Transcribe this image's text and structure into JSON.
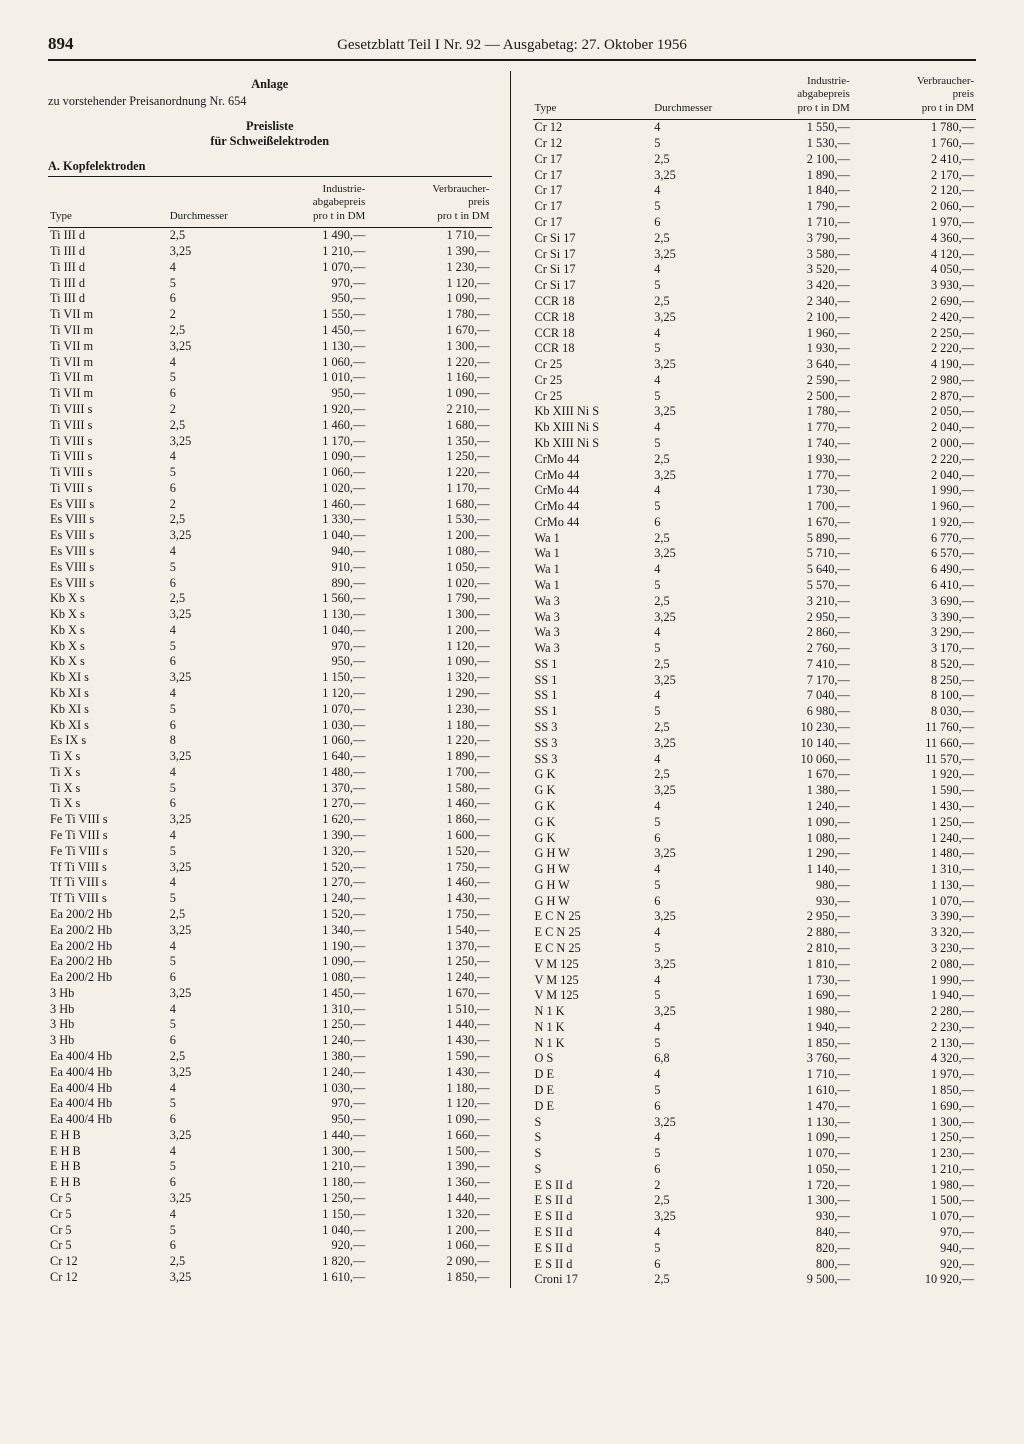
{
  "page_number": "894",
  "header": "Gesetzblatt Teil I Nr. 92 — Ausgabetag: 27. Oktober 1956",
  "anlage_title": "Anlage",
  "anlage_sub": "zu vorstehender Preisanordnung Nr. 654",
  "preisliste_line1": "Preisliste",
  "preisliste_line2": "für Schweißelektroden",
  "section_a": "A. Kopfelektroden",
  "columns": {
    "type": "Type",
    "durchmesser": "Durchmesser",
    "industrie": "Industrie-\nabgabepreis\npro t in DM",
    "verbraucher": "Verbraucher-\npreis\npro t in DM"
  },
  "left_rows": [
    {
      "t": "Ti III d",
      "d": "2,5",
      "i": "1 490,—",
      "v": "1 710,—"
    },
    {
      "t": "Ti III d",
      "d": "3,25",
      "i": "1 210,—",
      "v": "1 390,—"
    },
    {
      "t": "Ti III d",
      "d": "4",
      "i": "1 070,—",
      "v": "1 230,—"
    },
    {
      "t": "Ti III d",
      "d": "5",
      "i": "970,—",
      "v": "1 120,—"
    },
    {
      "t": "Ti III d",
      "d": "6",
      "i": "950,—",
      "v": "1 090,—"
    },
    {
      "t": "Ti VII m",
      "d": "2",
      "i": "1 550,—",
      "v": "1 780,—"
    },
    {
      "t": "Ti VII m",
      "d": "2,5",
      "i": "1 450,—",
      "v": "1 670,—"
    },
    {
      "t": "Ti VII m",
      "d": "3,25",
      "i": "1 130,—",
      "v": "1 300,—"
    },
    {
      "t": "Ti VII m",
      "d": "4",
      "i": "1 060,—",
      "v": "1 220,—"
    },
    {
      "t": "Ti VII m",
      "d": "5",
      "i": "1 010,—",
      "v": "1 160,—"
    },
    {
      "t": "Ti VII m",
      "d": "6",
      "i": "950,—",
      "v": "1 090,—"
    },
    {
      "t": "Ti VIII s",
      "d": "2",
      "i": "1 920,—",
      "v": "2 210,—"
    },
    {
      "t": "Ti VIII s",
      "d": "2,5",
      "i": "1 460,—",
      "v": "1 680,—"
    },
    {
      "t": "Ti VIII s",
      "d": "3,25",
      "i": "1 170,—",
      "v": "1 350,—"
    },
    {
      "t": "Ti VIII s",
      "d": "4",
      "i": "1 090,—",
      "v": "1 250,—"
    },
    {
      "t": "Ti VIII s",
      "d": "5",
      "i": "1 060,—",
      "v": "1 220,—"
    },
    {
      "t": "Ti VIII s",
      "d": "6",
      "i": "1 020,—",
      "v": "1 170,—"
    },
    {
      "t": "Es VIII s",
      "d": "2",
      "i": "1 460,—",
      "v": "1 680,—"
    },
    {
      "t": "Es VIII s",
      "d": "2,5",
      "i": "1 330,—",
      "v": "1 530,—"
    },
    {
      "t": "Es VIII s",
      "d": "3,25",
      "i": "1 040,—",
      "v": "1 200,—"
    },
    {
      "t": "Es VIII s",
      "d": "4",
      "i": "940,—",
      "v": "1 080,—"
    },
    {
      "t": "Es VIII s",
      "d": "5",
      "i": "910,—",
      "v": "1 050,—"
    },
    {
      "t": "Es VIII s",
      "d": "6",
      "i": "890,—",
      "v": "1 020,—"
    },
    {
      "t": "Kb X s",
      "d": "2,5",
      "i": "1 560,—",
      "v": "1 790,—"
    },
    {
      "t": "Kb X s",
      "d": "3,25",
      "i": "1 130,—",
      "v": "1 300,—"
    },
    {
      "t": "Kb X s",
      "d": "4",
      "i": "1 040,—",
      "v": "1 200,—"
    },
    {
      "t": "Kb X s",
      "d": "5",
      "i": "970,—",
      "v": "1 120,—"
    },
    {
      "t": "Kb X s",
      "d": "6",
      "i": "950,—",
      "v": "1 090,—"
    },
    {
      "t": "Kb XI s",
      "d": "3,25",
      "i": "1 150,—",
      "v": "1 320,—"
    },
    {
      "t": "Kb XI s",
      "d": "4",
      "i": "1 120,—",
      "v": "1 290,—"
    },
    {
      "t": "Kb XI s",
      "d": "5",
      "i": "1 070,—",
      "v": "1 230,—"
    },
    {
      "t": "Kb XI s",
      "d": "6",
      "i": "1 030,—",
      "v": "1 180,—"
    },
    {
      "t": "Es IX s",
      "d": "8",
      "i": "1 060,—",
      "v": "1 220,—"
    },
    {
      "t": "Ti X s",
      "d": "3,25",
      "i": "1 640,—",
      "v": "1 890,—"
    },
    {
      "t": "Ti X s",
      "d": "4",
      "i": "1 480,—",
      "v": "1 700,—"
    },
    {
      "t": "Ti X s",
      "d": "5",
      "i": "1 370,—",
      "v": "1 580,—"
    },
    {
      "t": "Ti X s",
      "d": "6",
      "i": "1 270,—",
      "v": "1 460,—"
    },
    {
      "t": "Fe Ti VIII s",
      "d": "3,25",
      "i": "1 620,—",
      "v": "1 860,—"
    },
    {
      "t": "Fe Ti VIII s",
      "d": "4",
      "i": "1 390,—",
      "v": "1 600,—"
    },
    {
      "t": "Fe Ti VIII s",
      "d": "5",
      "i": "1 320,—",
      "v": "1 520,—"
    },
    {
      "t": "Tf Ti VIII s",
      "d": "3,25",
      "i": "1 520,—",
      "v": "1 750,—"
    },
    {
      "t": "Tf Ti VIII s",
      "d": "4",
      "i": "1 270,—",
      "v": "1 460,—"
    },
    {
      "t": "Tf Ti VIII s",
      "d": "5",
      "i": "1 240,—",
      "v": "1 430,—"
    },
    {
      "t": "Ea 200/2 Hb",
      "d": "2,5",
      "i": "1 520,—",
      "v": "1 750,—"
    },
    {
      "t": "Ea 200/2 Hb",
      "d": "3,25",
      "i": "1 340,—",
      "v": "1 540,—"
    },
    {
      "t": "Ea 200/2 Hb",
      "d": "4",
      "i": "1 190,—",
      "v": "1 370,—"
    },
    {
      "t": "Ea 200/2 Hb",
      "d": "5",
      "i": "1 090,—",
      "v": "1 250,—"
    },
    {
      "t": "Ea 200/2 Hb",
      "d": "6",
      "i": "1 080,—",
      "v": "1 240,—"
    },
    {
      "t": "3 Hb",
      "d": "3,25",
      "i": "1 450,—",
      "v": "1 670,—"
    },
    {
      "t": "3 Hb",
      "d": "4",
      "i": "1 310,—",
      "v": "1 510,—"
    },
    {
      "t": "3 Hb",
      "d": "5",
      "i": "1 250,—",
      "v": "1 440,—"
    },
    {
      "t": "3 Hb",
      "d": "6",
      "i": "1 240,—",
      "v": "1 430,—"
    },
    {
      "t": "Ea 400/4 Hb",
      "d": "2,5",
      "i": "1 380,—",
      "v": "1 590,—"
    },
    {
      "t": "Ea 400/4 Hb",
      "d": "3,25",
      "i": "1 240,—",
      "v": "1 430,—"
    },
    {
      "t": "Ea 400/4 Hb",
      "d": "4",
      "i": "1 030,—",
      "v": "1 180,—"
    },
    {
      "t": "Ea 400/4 Hb",
      "d": "5",
      "i": "970,—",
      "v": "1 120,—"
    },
    {
      "t": "Ea 400/4 Hb",
      "d": "6",
      "i": "950,—",
      "v": "1 090,—"
    },
    {
      "t": "E H B",
      "d": "3,25",
      "i": "1 440,—",
      "v": "1 660,—"
    },
    {
      "t": "E H B",
      "d": "4",
      "i": "1 300,—",
      "v": "1 500,—"
    },
    {
      "t": "E H B",
      "d": "5",
      "i": "1 210,—",
      "v": "1 390,—"
    },
    {
      "t": "E H B",
      "d": "6",
      "i": "1 180,—",
      "v": "1 360,—"
    },
    {
      "t": "Cr 5",
      "d": "3,25",
      "i": "1 250,—",
      "v": "1 440,—"
    },
    {
      "t": "Cr 5",
      "d": "4",
      "i": "1 150,—",
      "v": "1 320,—"
    },
    {
      "t": "Cr 5",
      "d": "5",
      "i": "1 040,—",
      "v": "1 200,—"
    },
    {
      "t": "Cr 5",
      "d": "6",
      "i": "920,—",
      "v": "1 060,—"
    },
    {
      "t": "Cr 12",
      "d": "2,5",
      "i": "1 820,—",
      "v": "2 090,—"
    },
    {
      "t": "Cr 12",
      "d": "3,25",
      "i": "1 610,—",
      "v": "1 850,—"
    }
  ],
  "right_rows": [
    {
      "t": "Cr 12",
      "d": "4",
      "i": "1 550,—",
      "v": "1 780,—"
    },
    {
      "t": "Cr 12",
      "d": "5",
      "i": "1 530,—",
      "v": "1 760,—"
    },
    {
      "t": "Cr 17",
      "d": "2,5",
      "i": "2 100,—",
      "v": "2 410,—"
    },
    {
      "t": "Cr 17",
      "d": "3,25",
      "i": "1 890,—",
      "v": "2 170,—"
    },
    {
      "t": "Cr 17",
      "d": "4",
      "i": "1 840,—",
      "v": "2 120,—"
    },
    {
      "t": "Cr 17",
      "d": "5",
      "i": "1 790,—",
      "v": "2 060,—"
    },
    {
      "t": "Cr 17",
      "d": "6",
      "i": "1 710,—",
      "v": "1 970,—"
    },
    {
      "t": "Cr Si 17",
      "d": "2,5",
      "i": "3 790,—",
      "v": "4 360,—"
    },
    {
      "t": "Cr Si 17",
      "d": "3,25",
      "i": "3 580,—",
      "v": "4 120,—"
    },
    {
      "t": "Cr Si 17",
      "d": "4",
      "i": "3 520,—",
      "v": "4 050,—"
    },
    {
      "t": "Cr Si 17",
      "d": "5",
      "i": "3 420,—",
      "v": "3 930,—"
    },
    {
      "t": "CCR 18",
      "d": "2,5",
      "i": "2 340,—",
      "v": "2 690,—"
    },
    {
      "t": "CCR 18",
      "d": "3,25",
      "i": "2 100,—",
      "v": "2 420,—"
    },
    {
      "t": "CCR 18",
      "d": "4",
      "i": "1 960,—",
      "v": "2 250,—"
    },
    {
      "t": "CCR 18",
      "d": "5",
      "i": "1 930,—",
      "v": "2 220,—"
    },
    {
      "t": "Cr 25",
      "d": "3,25",
      "i": "3 640,—",
      "v": "4 190,—"
    },
    {
      "t": "Cr 25",
      "d": "4",
      "i": "2 590,—",
      "v": "2 980,—"
    },
    {
      "t": "Cr 25",
      "d": "5",
      "i": "2 500,—",
      "v": "2 870,—"
    },
    {
      "t": "Kb XIII Ni S",
      "d": "3,25",
      "i": "1 780,—",
      "v": "2 050,—"
    },
    {
      "t": "Kb XIII Ni S",
      "d": "4",
      "i": "1 770,—",
      "v": "2 040,—"
    },
    {
      "t": "Kb XIII Ni S",
      "d": "5",
      "i": "1 740,—",
      "v": "2 000,—"
    },
    {
      "t": "CrMo 44",
      "d": "2,5",
      "i": "1 930,—",
      "v": "2 220,—"
    },
    {
      "t": "CrMo 44",
      "d": "3,25",
      "i": "1 770,—",
      "v": "2 040,—"
    },
    {
      "t": "CrMo 44",
      "d": "4",
      "i": "1 730,—",
      "v": "1 990,—"
    },
    {
      "t": "CrMo 44",
      "d": "5",
      "i": "1 700,—",
      "v": "1 960,—"
    },
    {
      "t": "CrMo 44",
      "d": "6",
      "i": "1 670,—",
      "v": "1 920,—"
    },
    {
      "t": "Wa 1",
      "d": "2,5",
      "i": "5 890,—",
      "v": "6 770,—"
    },
    {
      "t": "Wa 1",
      "d": "3,25",
      "i": "5 710,—",
      "v": "6 570,—"
    },
    {
      "t": "Wa 1",
      "d": "4",
      "i": "5 640,—",
      "v": "6 490,—"
    },
    {
      "t": "Wa 1",
      "d": "5",
      "i": "5 570,—",
      "v": "6 410,—"
    },
    {
      "t": "Wa 3",
      "d": "2,5",
      "i": "3 210,—",
      "v": "3 690,—"
    },
    {
      "t": "Wa 3",
      "d": "3,25",
      "i": "2 950,—",
      "v": "3 390,—"
    },
    {
      "t": "Wa 3",
      "d": "4",
      "i": "2 860,—",
      "v": "3 290,—"
    },
    {
      "t": "Wa 3",
      "d": "5",
      "i": "2 760,—",
      "v": "3 170,—"
    },
    {
      "t": "SS 1",
      "d": "2,5",
      "i": "7 410,—",
      "v": "8 520,—"
    },
    {
      "t": "SS 1",
      "d": "3,25",
      "i": "7 170,—",
      "v": "8 250,—"
    },
    {
      "t": "SS 1",
      "d": "4",
      "i": "7 040,—",
      "v": "8 100,—"
    },
    {
      "t": "SS 1",
      "d": "5",
      "i": "6 980,—",
      "v": "8 030,—"
    },
    {
      "t": "SS 3",
      "d": "2,5",
      "i": "10 230,—",
      "v": "11 760,—"
    },
    {
      "t": "SS 3",
      "d": "3,25",
      "i": "10 140,—",
      "v": "11 660,—"
    },
    {
      "t": "SS 3",
      "d": "4",
      "i": "10 060,—",
      "v": "11 570,—"
    },
    {
      "t": "G K",
      "d": "2,5",
      "i": "1 670,—",
      "v": "1 920,—"
    },
    {
      "t": "G K",
      "d": "3,25",
      "i": "1 380,—",
      "v": "1 590,—"
    },
    {
      "t": "G K",
      "d": "4",
      "i": "1 240,—",
      "v": "1 430,—"
    },
    {
      "t": "G K",
      "d": "5",
      "i": "1 090,—",
      "v": "1 250,—"
    },
    {
      "t": "G K",
      "d": "6",
      "i": "1 080,—",
      "v": "1 240,—"
    },
    {
      "t": "G H W",
      "d": "3,25",
      "i": "1 290,—",
      "v": "1 480,—"
    },
    {
      "t": "G H W",
      "d": "4",
      "i": "1 140,—",
      "v": "1 310,—"
    },
    {
      "t": "G H W",
      "d": "5",
      "i": "980,—",
      "v": "1 130,—"
    },
    {
      "t": "G H W",
      "d": "6",
      "i": "930,—",
      "v": "1 070,—"
    },
    {
      "t": "E C N 25",
      "d": "3,25",
      "i": "2 950,—",
      "v": "3 390,—"
    },
    {
      "t": "E C N 25",
      "d": "4",
      "i": "2 880,—",
      "v": "3 320,—"
    },
    {
      "t": "E C N 25",
      "d": "5",
      "i": "2 810,—",
      "v": "3 230,—"
    },
    {
      "t": "V M 125",
      "d": "3,25",
      "i": "1 810,—",
      "v": "2 080,—"
    },
    {
      "t": "V M 125",
      "d": "4",
      "i": "1 730,—",
      "v": "1 990,—"
    },
    {
      "t": "V M 125",
      "d": "5",
      "i": "1 690,—",
      "v": "1 940,—"
    },
    {
      "t": "N 1 K",
      "d": "3,25",
      "i": "1 980,—",
      "v": "2 280,—"
    },
    {
      "t": "N 1 K",
      "d": "4",
      "i": "1 940,—",
      "v": "2 230,—"
    },
    {
      "t": "N 1 K",
      "d": "5",
      "i": "1 850,—",
      "v": "2 130,—"
    },
    {
      "t": "O S",
      "d": "6,8",
      "i": "3 760,—",
      "v": "4 320,—"
    },
    {
      "t": "D E",
      "d": "4",
      "i": "1 710,—",
      "v": "1 970,—"
    },
    {
      "t": "D E",
      "d": "5",
      "i": "1 610,—",
      "v": "1 850,—"
    },
    {
      "t": "D E",
      "d": "6",
      "i": "1 470,—",
      "v": "1 690,—"
    },
    {
      "t": "S",
      "d": "3,25",
      "i": "1 130,—",
      "v": "1 300,—"
    },
    {
      "t": "S",
      "d": "4",
      "i": "1 090,—",
      "v": "1 250,—"
    },
    {
      "t": "S",
      "d": "5",
      "i": "1 070,—",
      "v": "1 230,—"
    },
    {
      "t": "S",
      "d": "6",
      "i": "1 050,—",
      "v": "1 210,—"
    },
    {
      "t": "E S II d",
      "d": "2",
      "i": "1 720,—",
      "v": "1 980,—"
    },
    {
      "t": "E S II d",
      "d": "2,5",
      "i": "1 300,—",
      "v": "1 500,—"
    },
    {
      "t": "E S II d",
      "d": "3,25",
      "i": "930,—",
      "v": "1 070,—"
    },
    {
      "t": "E S II d",
      "d": "4",
      "i": "840,—",
      "v": "970,—"
    },
    {
      "t": "E S II d",
      "d": "5",
      "i": "820,—",
      "v": "940,—"
    },
    {
      "t": "E S II d",
      "d": "6",
      "i": "800,—",
      "v": "920,—"
    },
    {
      "t": "Croni 17",
      "d": "2,5",
      "i": "9 500,—",
      "v": "10 920,—"
    }
  ]
}
